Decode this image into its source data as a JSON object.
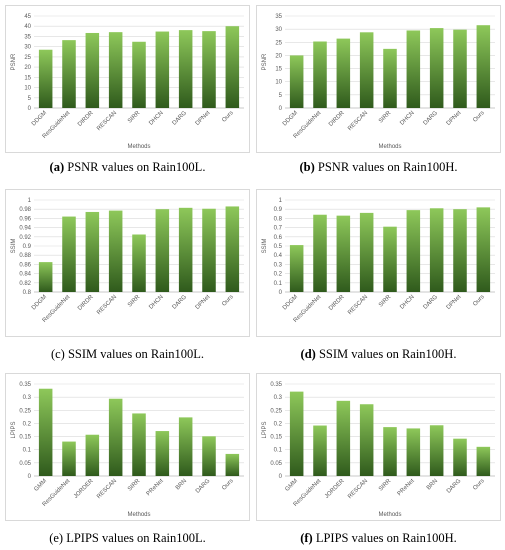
{
  "colors": {
    "bar_top": "#8ec85a",
    "bar_bottom": "#2f5a1c",
    "grid": "#d9d9d9",
    "axis": "#bfbfbf",
    "text": "#595959"
  },
  "chart_data": [
    {
      "type": "bar",
      "caption_tag": "(a)",
      "caption_text": " PSNR values on Rain100L.",
      "caption_tag_bold": true,
      "xlabel": "Methods",
      "ylabel": "PSNR",
      "ylim": [
        0,
        45
      ],
      "yticks": [
        "0",
        "5",
        "10",
        "15",
        "20",
        "25",
        "30",
        "35",
        "40",
        "45"
      ],
      "categories": [
        "DDGM",
        "ResGuideNet",
        "DIRDR",
        "RESCAN",
        "SIRR",
        "DHCN",
        "DARG",
        "DPNet",
        "Ours"
      ],
      "values": [
        28.5,
        33.2,
        36.7,
        37.1,
        32.4,
        37.4,
        38.1,
        37.6,
        40.0
      ]
    },
    {
      "type": "bar",
      "caption_tag": "(b)",
      "caption_text": " PSNR values on Rain100H.",
      "caption_tag_bold": true,
      "xlabel": "Methods",
      "ylabel": "PSNR",
      "ylim": [
        0,
        35
      ],
      "yticks": [
        "0",
        "5",
        "10",
        "15",
        "20",
        "25",
        "30",
        "35"
      ],
      "categories": [
        "DDGM",
        "ResGuideNet",
        "DIRDR",
        "RESCAN",
        "SIRR",
        "DHCN",
        "DARG",
        "DPNet",
        "Ours"
      ],
      "values": [
        20.0,
        25.3,
        26.4,
        28.8,
        22.5,
        29.5,
        30.4,
        29.8,
        31.5
      ]
    },
    {
      "type": "bar",
      "caption_tag": "(c)",
      "caption_text": " SSIM values on Rain100L.",
      "caption_tag_bold": false,
      "xlabel": "",
      "ylabel": "SSIM",
      "ylim": [
        0.8,
        1
      ],
      "yticks": [
        "0.8",
        "0.82",
        "0.84",
        "0.86",
        "0.88",
        "0.9",
        "0.92",
        "0.94",
        "0.96",
        "0.98",
        "1"
      ],
      "categories": [
        "DDGM",
        "ResGuideNet",
        "DIRDR",
        "RESCAN",
        "SIRR",
        "DHCN",
        "DARG",
        "DPNet",
        "Ours"
      ],
      "values": [
        0.865,
        0.964,
        0.974,
        0.977,
        0.925,
        0.98,
        0.983,
        0.981,
        0.986
      ]
    },
    {
      "type": "bar",
      "caption_tag": "(d)",
      "caption_text": " SSIM values on Rain100H.",
      "caption_tag_bold": true,
      "xlabel": "",
      "ylabel": "SSIM",
      "ylim": [
        0,
        1
      ],
      "yticks": [
        "0",
        "0.1",
        "0.2",
        "0.3",
        "0.4",
        "0.5",
        "0.6",
        "0.7",
        "0.8",
        "0.9",
        "1"
      ],
      "categories": [
        "DDGM",
        "ResGuideNet",
        "DIRDR",
        "RESCAN",
        "SIRR",
        "DHCN",
        "DARG",
        "DPNet",
        "Ours"
      ],
      "values": [
        0.51,
        0.84,
        0.83,
        0.86,
        0.71,
        0.89,
        0.91,
        0.9,
        0.92
      ]
    },
    {
      "type": "bar",
      "caption_tag": "(e)",
      "caption_text": " LPIPS values on Rain100L.",
      "caption_tag_bold": false,
      "xlabel": "Methods",
      "ylabel": "LPIPS",
      "ylim": [
        0,
        0.35
      ],
      "yticks": [
        "0",
        "0.05",
        "0.1",
        "0.15",
        "0.2",
        "0.25",
        "0.3",
        "0.35"
      ],
      "categories": [
        "GMM",
        "ResGuideNet",
        "JORDER",
        "RESCAN",
        "SIRR",
        "PReNet",
        "BRN",
        "DARG",
        "Ours"
      ],
      "values": [
        0.332,
        0.131,
        0.157,
        0.294,
        0.238,
        0.171,
        0.223,
        0.151,
        0.084
      ]
    },
    {
      "type": "bar",
      "caption_tag": "(f)",
      "caption_text": " LPIPS values on Rain100H.",
      "caption_tag_bold": true,
      "xlabel": "Methods",
      "ylabel": "LPIPS",
      "ylim": [
        0,
        0.35
      ],
      "yticks": [
        "0",
        "0.05",
        "0.1",
        "0.15",
        "0.2",
        "0.25",
        "0.3",
        "0.35"
      ],
      "categories": [
        "GMM",
        "ResGuideNet",
        "JORDER",
        "RESCAN",
        "SIRR",
        "PReNet",
        "BRN",
        "DARG",
        "Ours"
      ],
      "values": [
        0.321,
        0.192,
        0.286,
        0.273,
        0.186,
        0.181,
        0.193,
        0.142,
        0.111
      ]
    }
  ]
}
